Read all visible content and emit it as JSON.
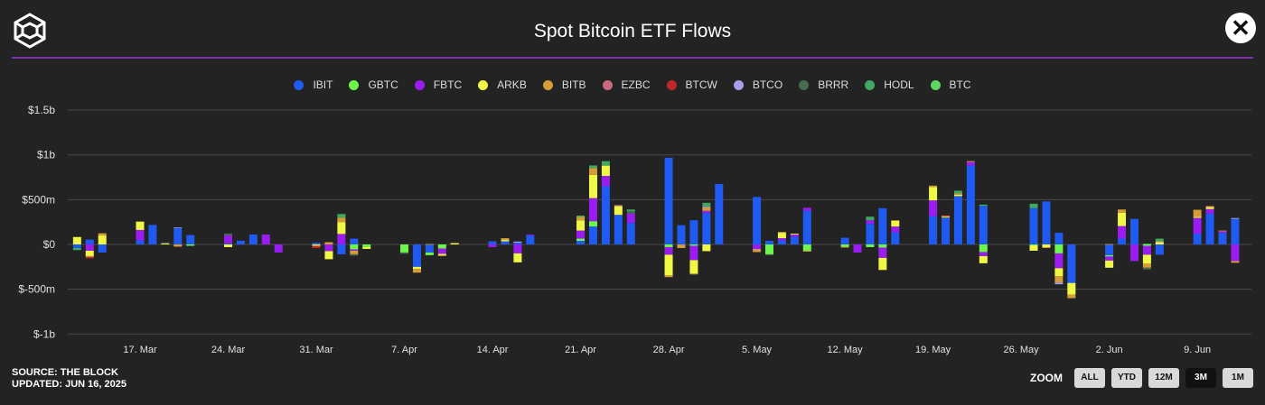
{
  "header": {
    "title": "Spot Bitcoin ETF Flows",
    "close_icon": "close-icon",
    "logo_icon": "cube-logo-icon"
  },
  "footer": {
    "source": "SOURCE: THE BLOCK",
    "updated": "UPDATED: JUN 16, 2025"
  },
  "zoom": {
    "label": "ZOOM",
    "buttons": [
      "ALL",
      "YTD",
      "12M",
      "3M",
      "1M"
    ],
    "selected": "3M"
  },
  "chart_data": {
    "type": "bar",
    "stacked": true,
    "title": "Spot Bitcoin ETF Flows",
    "ylim": [
      -1000000000,
      1500000000
    ],
    "yunit": "USD (millions in series values)",
    "y_ticks": [
      {
        "v": 1500,
        "label": "$1.5b"
      },
      {
        "v": 1000,
        "label": "$1b"
      },
      {
        "v": 500,
        "label": "$500m"
      },
      {
        "v": 0,
        "label": "$0"
      },
      {
        "v": -500,
        "label": "$-500m"
      },
      {
        "v": -1000,
        "label": "$-1b"
      }
    ],
    "x_ticks": [
      {
        "d": "2025-03-17",
        "label": "17. Mar"
      },
      {
        "d": "2025-03-24",
        "label": "24. Mar"
      },
      {
        "d": "2025-03-31",
        "label": "31. Mar"
      },
      {
        "d": "2025-04-07",
        "label": "7. Apr"
      },
      {
        "d": "2025-04-14",
        "label": "14. Apr"
      },
      {
        "d": "2025-04-21",
        "label": "21. Apr"
      },
      {
        "d": "2025-04-28",
        "label": "28. Apr"
      },
      {
        "d": "2025-05-05",
        "label": "5. May"
      },
      {
        "d": "2025-05-12",
        "label": "12. May"
      },
      {
        "d": "2025-05-19",
        "label": "19. May"
      },
      {
        "d": "2025-05-26",
        "label": "26. May"
      },
      {
        "d": "2025-06-02",
        "label": "2. Jun"
      },
      {
        "d": "2025-06-09",
        "label": "9. Jun"
      }
    ],
    "grid": true,
    "legend_position": "top",
    "categories": [
      "2025-03-12",
      "2025-03-13",
      "2025-03-14",
      "2025-03-17",
      "2025-03-18",
      "2025-03-19",
      "2025-03-20",
      "2025-03-21",
      "2025-03-24",
      "2025-03-25",
      "2025-03-26",
      "2025-03-27",
      "2025-03-28",
      "2025-03-31",
      "2025-04-01",
      "2025-04-02",
      "2025-04-03",
      "2025-04-04",
      "2025-04-07",
      "2025-04-08",
      "2025-04-09",
      "2025-04-10",
      "2025-04-11",
      "2025-04-14",
      "2025-04-15",
      "2025-04-16",
      "2025-04-17",
      "2025-04-21",
      "2025-04-22",
      "2025-04-23",
      "2025-04-24",
      "2025-04-25",
      "2025-04-28",
      "2025-04-29",
      "2025-04-30",
      "2025-05-01",
      "2025-05-02",
      "2025-05-05",
      "2025-05-06",
      "2025-05-07",
      "2025-05-08",
      "2025-05-09",
      "2025-05-12",
      "2025-05-13",
      "2025-05-14",
      "2025-05-15",
      "2025-05-16",
      "2025-05-19",
      "2025-05-20",
      "2025-05-21",
      "2025-05-22",
      "2025-05-23",
      "2025-05-27",
      "2025-05-28",
      "2025-05-29",
      "2025-05-30",
      "2025-06-02",
      "2025-06-03",
      "2025-06-04",
      "2025-06-05",
      "2025-06-06",
      "2025-06-09",
      "2025-06-10",
      "2025-06-11",
      "2025-06-12"
    ],
    "series": [
      {
        "name": "IBIT",
        "color": "#1f5af2",
        "values": [
          -40,
          55,
          -90,
          45,
          218,
          0,
          185,
          105,
          12,
          42,
          110,
          0,
          0,
          20,
          0,
          -110,
          65,
          0,
          0,
          -250,
          -90,
          0,
          0,
          35,
          35,
          20,
          100,
          40,
          200,
          650,
          330,
          240,
          967,
          215,
          270,
          350,
          675,
          530,
          40,
          45,
          85,
          375,
          75,
          0,
          230,
          405,
          135,
          315,
          300,
          540,
          880,
          430,
          405,
          480,
          130,
          -430,
          -120,
          65,
          285,
          0,
          -115,
          120,
          345,
          130,
          285
        ]
      },
      {
        "name": "GBTC",
        "color": "#6cf74a",
        "values": [
          0,
          0,
          0,
          0,
          0,
          0,
          0,
          -15,
          0,
          0,
          0,
          0,
          0,
          0,
          0,
          0,
          -55,
          -30,
          -90,
          0,
          -30,
          -45,
          0,
          0,
          0,
          0,
          0,
          25,
          60,
          0,
          0,
          0,
          -30,
          0,
          -15,
          0,
          0,
          0,
          -110,
          0,
          0,
          -70,
          -25,
          0,
          -30,
          -35,
          0,
          0,
          0,
          0,
          0,
          -85,
          -10,
          0,
          -100,
          0,
          -15,
          0,
          0,
          -15,
          0,
          0,
          0,
          0,
          0
        ]
      },
      {
        "name": "FBTC",
        "color": "#9a1cf0",
        "values": [
          0,
          -70,
          0,
          117,
          0,
          0,
          0,
          0,
          90,
          0,
          0,
          110,
          -90,
          0,
          -75,
          117,
          -15,
          0,
          0,
          0,
          0,
          -60,
          0,
          -30,
          0,
          -100,
          10,
          90,
          257,
          115,
          0,
          105,
          -85,
          0,
          -160,
          25,
          0,
          -55,
          0,
          25,
          25,
          35,
          0,
          -90,
          40,
          -115,
          65,
          177,
          0,
          0,
          40,
          -45,
          0,
          0,
          -165,
          0,
          -45,
          140,
          -185,
          -100,
          0,
          177,
          50,
          20,
          -185
        ]
      },
      {
        "name": "ARKB",
        "color": "#f0f845",
        "values": [
          83,
          -60,
          100,
          93,
          0,
          10,
          0,
          0,
          -30,
          0,
          0,
          0,
          0,
          -15,
          -90,
          133,
          0,
          -20,
          0,
          -25,
          0,
          -15,
          15,
          0,
          15,
          -100,
          0,
          115,
          260,
          115,
          100,
          0,
          -230,
          0,
          -150,
          -75,
          0,
          -5,
          0,
          60,
          10,
          0,
          0,
          0,
          0,
          -135,
          65,
          150,
          10,
          15,
          0,
          -80,
          -60,
          -30,
          -90,
          -130,
          -80,
          150,
          0,
          -100,
          25,
          10,
          25,
          0,
          0
        ]
      },
      {
        "name": "BITB",
        "color": "#d49d38",
        "values": [
          0,
          -10,
          25,
          0,
          0,
          0,
          -25,
          0,
          0,
          0,
          0,
          0,
          0,
          0,
          25,
          50,
          -40,
          0,
          0,
          -40,
          5,
          -10,
          0,
          0,
          20,
          0,
          0,
          35,
          75,
          0,
          0,
          0,
          -20,
          -40,
          -10,
          40,
          0,
          -25,
          0,
          10,
          0,
          -10,
          -10,
          0,
          0,
          0,
          5,
          15,
          10,
          15,
          10,
          0,
          0,
          -10,
          -70,
          -40,
          5,
          35,
          0,
          -45,
          10,
          80,
          0,
          5,
          -20
        ]
      },
      {
        "name": "EZBC",
        "color": "#c86b7c",
        "values": [
          0,
          0,
          0,
          0,
          0,
          0,
          0,
          0,
          0,
          0,
          0,
          0,
          0,
          0,
          0,
          0,
          0,
          0,
          0,
          0,
          0,
          0,
          0,
          0,
          0,
          0,
          0,
          0,
          0,
          0,
          10,
          0,
          0,
          0,
          0,
          0,
          0,
          0,
          0,
          0,
          0,
          0,
          0,
          0,
          0,
          0,
          0,
          0,
          0,
          0,
          0,
          0,
          0,
          0,
          0,
          0,
          0,
          0,
          0,
          0,
          0,
          0,
          10,
          0,
          0
        ]
      },
      {
        "name": "BTCW",
        "color": "#c2262d",
        "values": [
          0,
          -15,
          0,
          0,
          0,
          0,
          0,
          0,
          0,
          0,
          0,
          0,
          0,
          -25,
          0,
          0,
          0,
          0,
          0,
          0,
          0,
          0,
          0,
          0,
          0,
          0,
          0,
          0,
          0,
          0,
          0,
          0,
          0,
          0,
          0,
          0,
          0,
          0,
          0,
          0,
          0,
          0,
          0,
          0,
          0,
          0,
          0,
          0,
          5,
          0,
          0,
          0,
          0,
          0,
          0,
          0,
          0,
          0,
          0,
          0,
          0,
          0,
          0,
          0,
          0
        ]
      },
      {
        "name": "BTCO",
        "color": "#a99ee8",
        "values": [
          0,
          0,
          0,
          0,
          0,
          0,
          5,
          0,
          0,
          0,
          0,
          0,
          0,
          0,
          0,
          0,
          0,
          0,
          0,
          0,
          0,
          0,
          0,
          0,
          0,
          12,
          0,
          0,
          0,
          0,
          0,
          0,
          0,
          0,
          0,
          10,
          0,
          0,
          0,
          0,
          0,
          0,
          0,
          0,
          0,
          0,
          0,
          0,
          0,
          0,
          0,
          0,
          0,
          0,
          -20,
          0,
          0,
          0,
          0,
          0,
          0,
          0,
          0,
          0,
          10
        ]
      },
      {
        "name": "BRRR",
        "color": "#486a4e",
        "values": [
          0,
          0,
          0,
          0,
          0,
          12,
          0,
          0,
          20,
          0,
          0,
          0,
          0,
          0,
          0,
          0,
          -15,
          0,
          -15,
          0,
          0,
          0,
          0,
          0,
          0,
          0,
          0,
          0,
          0,
          0,
          0,
          25,
          0,
          0,
          0,
          0,
          0,
          0,
          -10,
          0,
          0,
          0,
          0,
          0,
          0,
          0,
          0,
          0,
          0,
          0,
          0,
          0,
          0,
          0,
          0,
          0,
          0,
          0,
          0,
          -20,
          0,
          0,
          0,
          0,
          0
        ]
      },
      {
        "name": "HODL",
        "color": "#3fa863",
        "values": [
          -23,
          0,
          0,
          0,
          0,
          0,
          0,
          0,
          0,
          0,
          0,
          0,
          0,
          0,
          0,
          40,
          0,
          0,
          0,
          0,
          0,
          0,
          0,
          0,
          0,
          0,
          0,
          0,
          30,
          50,
          0,
          20,
          0,
          0,
          0,
          40,
          0,
          0,
          0,
          0,
          0,
          0,
          0,
          0,
          40,
          0,
          0,
          0,
          0,
          30,
          0,
          15,
          50,
          0,
          0,
          0,
          0,
          0,
          0,
          10,
          30,
          0,
          0,
          0,
          0
        ]
      },
      {
        "name": "BTC",
        "color": "#5fd45f",
        "values": [
          0,
          0,
          0,
          0,
          0,
          0,
          0,
          0,
          0,
          0,
          0,
          0,
          0,
          0,
          0,
          0,
          0,
          0,
          0,
          0,
          0,
          0,
          0,
          0,
          0,
          0,
          0,
          15,
          0,
          0,
          0,
          0,
          0,
          0,
          0,
          0,
          0,
          0,
          0,
          0,
          0,
          0,
          0,
          0,
          0,
          0,
          0,
          0,
          0,
          0,
          0,
          0,
          0,
          0,
          0,
          0,
          0,
          0,
          0,
          0,
          0,
          0,
          0,
          0,
          0
        ]
      }
    ]
  }
}
